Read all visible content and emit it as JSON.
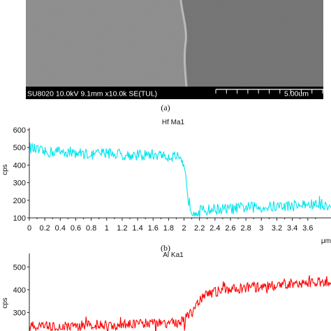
{
  "sem_image": {
    "info_bar_text": "SU8020 10.0kV 9.1mm x10.0k SE(TUL)",
    "scale_text": "5.00um",
    "colors": {
      "left_region": "#8a8a8a",
      "right_region": "#6e6e6e",
      "bar": "#000000",
      "text": "#ffffff"
    }
  },
  "figure_labels": {
    "a": "(a)",
    "b": "(b)"
  },
  "chart_data": [
    {
      "type": "line",
      "title": "Hf Ma1",
      "ylabel": "cps",
      "xlabel": "μm",
      "xlim": [
        0,
        3.9
      ],
      "ylim": [
        100,
        600
      ],
      "xticks": [
        0,
        0.2,
        0.4,
        0.6,
        0.8,
        1,
        1.2,
        1.4,
        1.6,
        1.8,
        2,
        2.2,
        2.4,
        2.6,
        2.8,
        3,
        3.2,
        3.4,
        3.6
      ],
      "xtick_labels": [
        "0",
        "0.2",
        "0.4",
        "0.6",
        "0.8",
        "1",
        "1.2",
        "1.4",
        "1.6",
        "1.8",
        "2",
        "2.2",
        "2.4",
        "2.6",
        "2.8",
        "3",
        "3.2",
        "3.4",
        "3.6"
      ],
      "yticks": [
        100,
        200,
        300,
        400,
        500,
        600
      ],
      "ytick_labels": [
        "100",
        "200",
        "300",
        "400",
        "500",
        "600"
      ],
      "color": "#00e5ee",
      "series": [
        {
          "x": [
            0,
            0.2,
            0.4,
            0.6,
            0.8,
            1.0,
            1.2,
            1.4,
            1.6,
            1.8,
            1.9,
            1.95,
            2.0,
            2.03,
            2.06,
            2.1,
            2.2,
            2.4,
            2.6,
            2.8,
            3.0,
            3.2,
            3.4,
            3.6,
            3.9
          ],
          "y": [
            500,
            470,
            480,
            470,
            460,
            470,
            460,
            455,
            460,
            450,
            450,
            420,
            380,
            300,
            200,
            140,
            140,
            150,
            150,
            160,
            160,
            165,
            170,
            175,
            175
          ],
          "noise": 32
        }
      ]
    },
    {
      "type": "line",
      "title": "Al Ka1",
      "ylabel": "cps",
      "ylim": [
        200,
        550
      ],
      "yticks": [
        300,
        400,
        500
      ],
      "ytick_labels": [
        "300",
        "400",
        "500"
      ],
      "xlim": [
        0,
        3.9
      ],
      "color": "#ff0000",
      "series": [
        {
          "x": [
            0,
            0.4,
            0.8,
            1.2,
            1.6,
            1.9,
            2.0,
            2.1,
            2.2,
            2.3,
            2.4,
            2.6,
            2.8,
            3.0,
            3.2,
            3.4,
            3.6,
            3.9
          ],
          "y": [
            240,
            240,
            245,
            245,
            250,
            255,
            265,
            300,
            350,
            380,
            390,
            400,
            410,
            410,
            420,
            430,
            430,
            440
          ],
          "noise": 22
        }
      ]
    }
  ]
}
